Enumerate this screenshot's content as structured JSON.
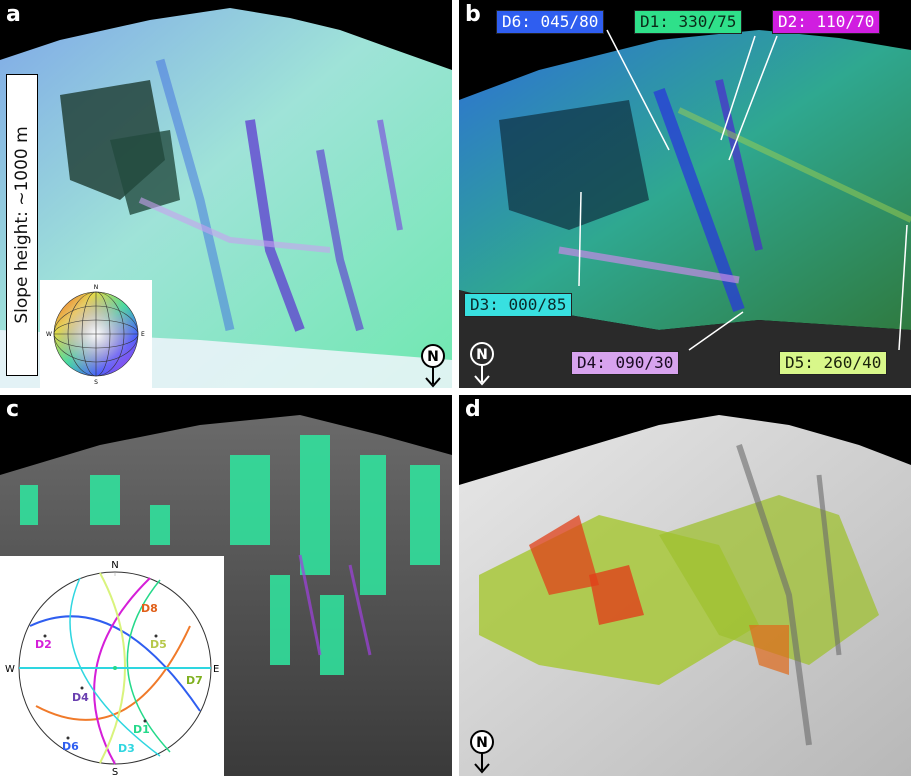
{
  "panels": {
    "a": {
      "letter": "a",
      "slope_label": "Slope height: ~1000 m",
      "north_label": "N"
    },
    "b": {
      "letter": "b",
      "north_label": "N",
      "tags": [
        {
          "id": "D6",
          "text": "D6: 045/80",
          "bg": "#2f5ef0",
          "fg": "#ffffff"
        },
        {
          "id": "D1",
          "text": "D1: 330/75",
          "bg": "#2fe08a",
          "fg": "#0b2a18"
        },
        {
          "id": "D2",
          "text": "D2: 110/70",
          "bg": "#d01ee0",
          "fg": "#ffffff"
        },
        {
          "id": "D3",
          "text": "D3: 000/85",
          "bg": "#38e0e0",
          "fg": "#0b2a2a"
        },
        {
          "id": "D4",
          "text": "D4: 090/30",
          "bg": "#d7a3ee",
          "fg": "#1a0b22"
        },
        {
          "id": "D5",
          "text": "D5: 260/40",
          "bg": "#d8f78a",
          "fg": "#1a220b"
        }
      ]
    },
    "c": {
      "letter": "c",
      "stereonet": {
        "north": "N",
        "south": "S",
        "east": "E",
        "west": "W",
        "poles": [
          "D1",
          "D2",
          "D3",
          "D4",
          "D5",
          "D6",
          "D7",
          "D8"
        ]
      }
    },
    "d": {
      "letter": "d",
      "north_label": "N"
    }
  },
  "colors": {
    "D1": "#25d98a",
    "D2": "#d51fd8",
    "D3": "#2fd6e0",
    "D4": "#b48be6",
    "D5": "#d9f37d",
    "D6": "#2f5ef0",
    "D7": "#9fd020",
    "D8": "#f07a2a"
  }
}
